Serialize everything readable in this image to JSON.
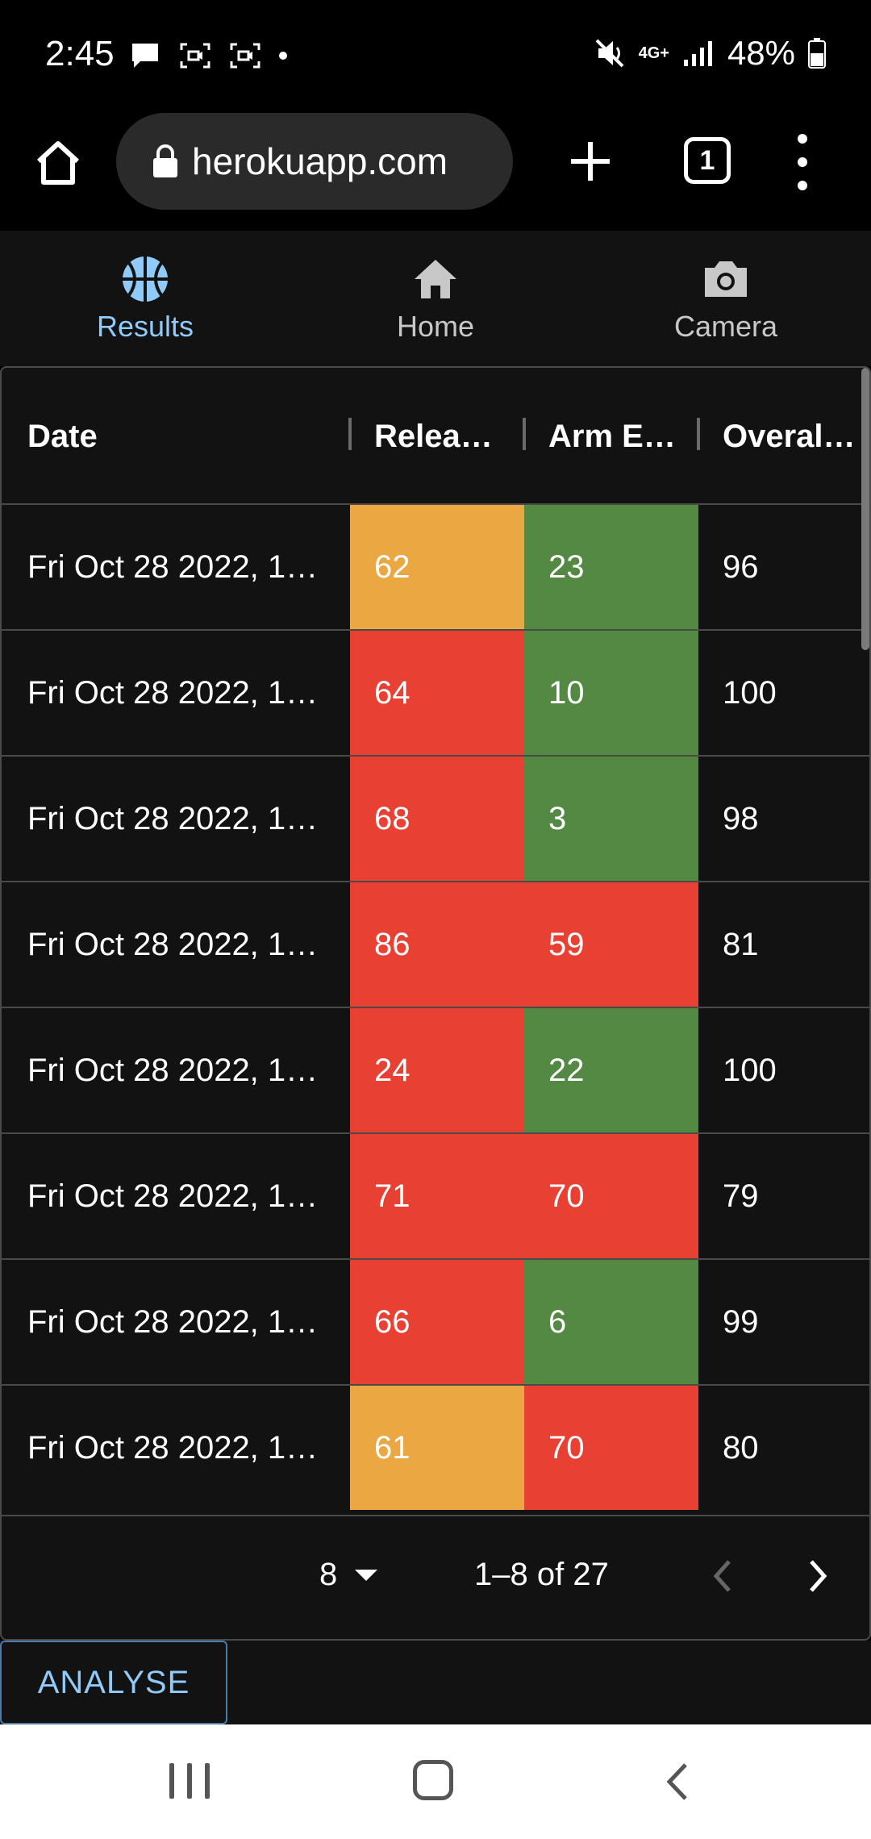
{
  "status_bar": {
    "time": "2:45",
    "battery": "48%",
    "network": "4G+"
  },
  "browser": {
    "url": "herokuapp.com",
    "tab_count": "1"
  },
  "app_nav": {
    "items": [
      {
        "label": "Results",
        "icon": "basketball-icon",
        "active": true
      },
      {
        "label": "Home",
        "icon": "home-icon",
        "active": false
      },
      {
        "label": "Camera",
        "icon": "camera-icon",
        "active": false
      }
    ]
  },
  "table": {
    "headers": [
      "Date",
      "Relea…",
      "Arm E…",
      "Overal…"
    ],
    "rows": [
      {
        "date": "Fri Oct 28 2022, 1…",
        "release": "62",
        "arm": "23",
        "overall": "96",
        "release_color": "orange",
        "arm_color": "green"
      },
      {
        "date": "Fri Oct 28 2022, 1…",
        "release": "64",
        "arm": "10",
        "overall": "100",
        "release_color": "red",
        "arm_color": "green"
      },
      {
        "date": "Fri Oct 28 2022, 1…",
        "release": "68",
        "arm": "3",
        "overall": "98",
        "release_color": "red",
        "arm_color": "green"
      },
      {
        "date": "Fri Oct 28 2022, 1…",
        "release": "86",
        "arm": "59",
        "overall": "81",
        "release_color": "red",
        "arm_color": "red"
      },
      {
        "date": "Fri Oct 28 2022, 1…",
        "release": "24",
        "arm": "22",
        "overall": "100",
        "release_color": "red",
        "arm_color": "green"
      },
      {
        "date": "Fri Oct 28 2022, 1…",
        "release": "71",
        "arm": "70",
        "overall": "79",
        "release_color": "red",
        "arm_color": "red"
      },
      {
        "date": "Fri Oct 28 2022, 1…",
        "release": "66",
        "arm": "6",
        "overall": "99",
        "release_color": "red",
        "arm_color": "green"
      },
      {
        "date": "Fri Oct 28 2022, 1…",
        "release": "61",
        "arm": "70",
        "overall": "80",
        "release_color": "orange",
        "arm_color": "red"
      }
    ]
  },
  "pagination": {
    "rows_per_page": "8",
    "range": "1–8 of 27"
  },
  "analyse_label": "ANALYSE",
  "colors": {
    "orange": "#eba842",
    "red": "#e84133",
    "green": "#538942",
    "accent": "#90caf9"
  }
}
